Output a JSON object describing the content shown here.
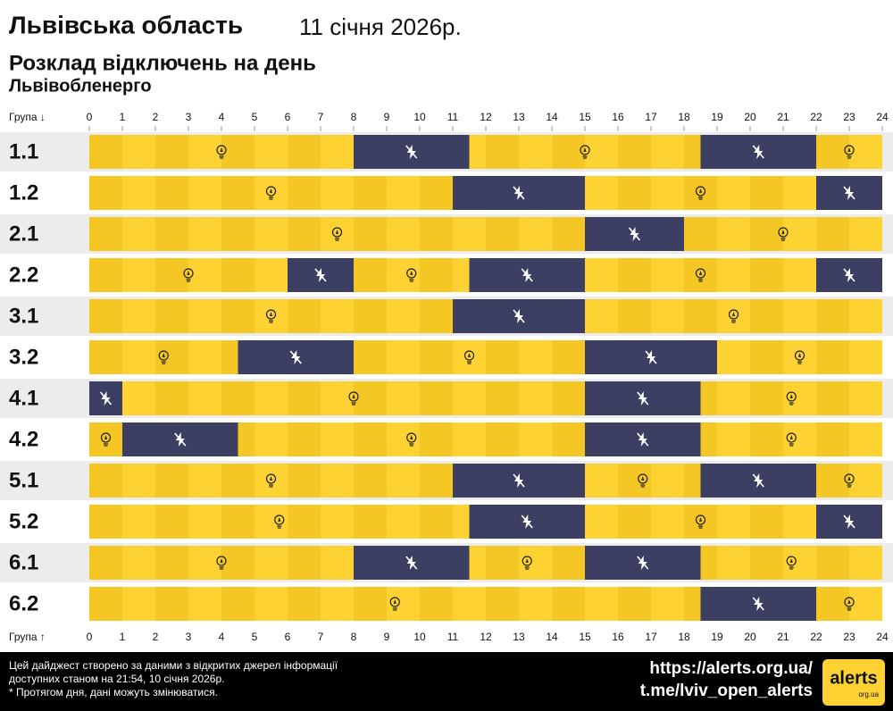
{
  "chart_data": {
    "type": "timeline",
    "title": "Львівська область",
    "date": "11 січня 2026р.",
    "subtitle": "Розклад відключень на день",
    "source": "Львівобленерго",
    "axis_label_top": "Група ↓",
    "axis_label_bottom": "Група ↑",
    "xlim": [
      0,
      24
    ],
    "xticks": [
      0,
      1,
      2,
      3,
      4,
      5,
      6,
      7,
      8,
      9,
      10,
      11,
      12,
      13,
      14,
      15,
      16,
      17,
      18,
      19,
      20,
      21,
      22,
      23,
      24
    ],
    "on_color": "#fdd232",
    "off_color": "#3c3e62",
    "groups": [
      {
        "name": "1.1",
        "outages": [
          [
            8,
            11.5
          ],
          [
            18.5,
            22
          ]
        ]
      },
      {
        "name": "1.2",
        "outages": [
          [
            11,
            15
          ],
          [
            22,
            24
          ]
        ]
      },
      {
        "name": "2.1",
        "outages": [
          [
            15,
            18
          ]
        ]
      },
      {
        "name": "2.2",
        "outages": [
          [
            6,
            8
          ],
          [
            11.5,
            15
          ],
          [
            22,
            24
          ]
        ]
      },
      {
        "name": "3.1",
        "outages": [
          [
            11,
            15
          ]
        ]
      },
      {
        "name": "3.2",
        "outages": [
          [
            4.5,
            8
          ],
          [
            15,
            19
          ]
        ]
      },
      {
        "name": "4.1",
        "outages": [
          [
            0,
            1
          ],
          [
            15,
            18.5
          ]
        ]
      },
      {
        "name": "4.2",
        "outages": [
          [
            1,
            4.5
          ],
          [
            15,
            18.5
          ]
        ]
      },
      {
        "name": "5.1",
        "outages": [
          [
            11,
            15
          ],
          [
            18.5,
            22
          ]
        ]
      },
      {
        "name": "5.2",
        "outages": [
          [
            11.5,
            15
          ],
          [
            22,
            24
          ]
        ]
      },
      {
        "name": "6.1",
        "outages": [
          [
            8,
            11.5
          ],
          [
            15,
            18.5
          ]
        ]
      },
      {
        "name": "6.2",
        "outages": [
          [
            18.5,
            22
          ]
        ]
      }
    ]
  },
  "footer": {
    "note": [
      "Цей дайджест створено за даними з відкритих джерел інформації",
      "доступних станом на 21:54, 10 січня 2026р.",
      "* Протягом дня, дані можуть змінюватися."
    ],
    "links": [
      "https://alerts.org.ua/",
      "t.me/lviv_open_alerts"
    ],
    "logo": "alerts",
    "logo_sub": "org.ua"
  }
}
